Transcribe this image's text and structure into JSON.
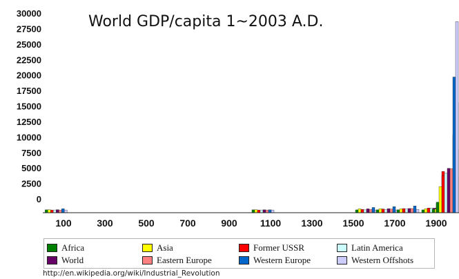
{
  "chart_data": {
    "type": "bar",
    "title": "World GDP/capita 1~2003 A.D.",
    "xlabel": "",
    "ylabel": "",
    "ylim": [
      0,
      30000
    ],
    "y_ticks": [
      "30000",
      "27500",
      "25000",
      "22500",
      "20000",
      "17500",
      "15000",
      "12500",
      "10000",
      "7500",
      "5000",
      "2500",
      "0"
    ],
    "x_ticks": [
      "100",
      "300",
      "500",
      "700",
      "900",
      "1100",
      "1300",
      "1500",
      "1700",
      "1900"
    ],
    "x_tick_values": [
      100,
      300,
      500,
      700,
      900,
      1100,
      1300,
      1500,
      1700,
      1900
    ],
    "xlim": [
      0,
      2010
    ],
    "series": [
      {
        "name": "Africa",
        "color": "#008000"
      },
      {
        "name": "Asia",
        "color": "#ffff00"
      },
      {
        "name": "Former USSR",
        "color": "#ff0000"
      },
      {
        "name": "Latin America",
        "color": "#ccffff"
      },
      {
        "name": "World",
        "color": "#660066"
      },
      {
        "name": "Eastern Europe",
        "color": "#ff8080"
      },
      {
        "name": "Western Europe",
        "color": "#0066cc"
      },
      {
        "name": "Western Offshots",
        "color": "#ccccff"
      }
    ],
    "groups": [
      {
        "year": 1,
        "values": [
          430,
          450,
          400,
          400,
          445,
          400,
          580,
          400
        ]
      },
      {
        "year": 1000,
        "values": [
          425,
          450,
          400,
          400,
          435,
          400,
          425,
          400
        ]
      },
      {
        "year": 1500,
        "values": [
          414,
          568,
          499,
          416,
          565,
          496,
          771,
          400
        ]
      },
      {
        "year": 1600,
        "values": [
          422,
          574,
          552,
          438,
          596,
          548,
          890,
          400
        ]
      },
      {
        "year": 1700,
        "values": [
          421,
          572,
          610,
          527,
          615,
          606,
          997,
          476
        ]
      },
      {
        "year": 1820,
        "values": [
          420,
          577,
          688,
          691,
          666,
          683,
          1202,
          1202
        ]
      },
      {
        "year": 1870,
        "values": [
          500,
          550,
          943,
          676,
          875,
          937,
          1960,
          2419
        ]
      },
      {
        "year": 1913,
        "values": [
          637,
          658,
          1488,
          1481,
          1525,
          1695,
          3458,
          5233
        ]
      },
      {
        "year": 1950,
        "values": [
          890,
          634,
          2841,
          2506,
          2111,
          2111,
          4579,
          9268
        ]
      },
      {
        "year": 1973,
        "values": [
          1410,
          1231,
          6059,
          4504,
          4091,
          4988,
          11416,
          16179
        ]
      },
      {
        "year": 2003,
        "values": [
          1549,
          3842,
          5397,
          5786,
          6516,
          6476,
          19912,
          28039
        ]
      }
    ]
  },
  "source_text": "http://en.wikipedia.org/wiki/Industrial_Revolution"
}
